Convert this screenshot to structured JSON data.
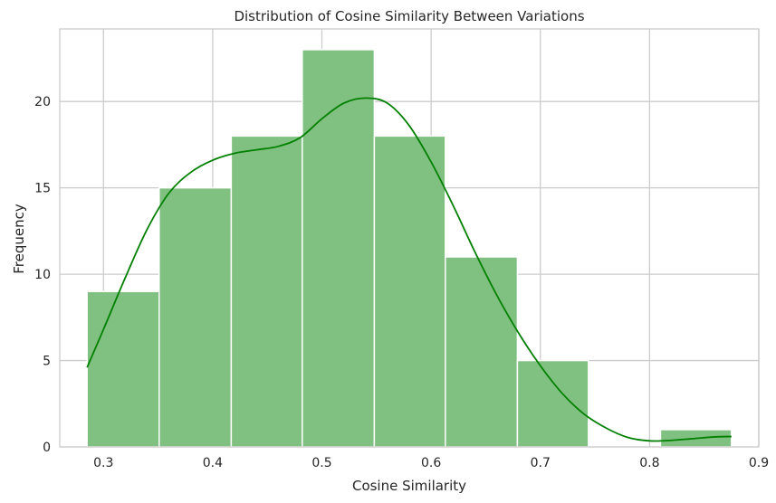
{
  "chart_data": {
    "type": "bar",
    "title": "Distribution of Cosine Similarity Between Variations",
    "xlabel": "Cosine Similarity",
    "ylabel": "Frequency",
    "xlim": [
      0.26,
      0.9
    ],
    "ylim": [
      0,
      24.2
    ],
    "xticks": [
      0.3,
      0.4,
      0.5,
      0.6,
      0.7,
      0.8,
      0.9
    ],
    "xtick_labels": [
      "0.3",
      "0.4",
      "0.5",
      "0.6",
      "0.7",
      "0.8",
      "0.9"
    ],
    "yticks": [
      0,
      5,
      10,
      15,
      20
    ],
    "ytick_labels": [
      "0",
      "5",
      "10",
      "15",
      "20"
    ],
    "grid": true,
    "bins": [
      {
        "x0": 0.285,
        "x1": 0.351,
        "count": 9
      },
      {
        "x0": 0.351,
        "x1": 0.417,
        "count": 15
      },
      {
        "x0": 0.417,
        "x1": 0.482,
        "count": 18
      },
      {
        "x0": 0.482,
        "x1": 0.548,
        "count": 23
      },
      {
        "x0": 0.548,
        "x1": 0.613,
        "count": 18
      },
      {
        "x0": 0.613,
        "x1": 0.679,
        "count": 11
      },
      {
        "x0": 0.679,
        "x1": 0.744,
        "count": 5
      },
      {
        "x0": 0.744,
        "x1": 0.81,
        "count": 0
      },
      {
        "x0": 0.81,
        "x1": 0.875,
        "count": 1
      }
    ],
    "kde": {
      "x": [
        0.285,
        0.3,
        0.32,
        0.34,
        0.36,
        0.38,
        0.4,
        0.42,
        0.44,
        0.46,
        0.48,
        0.5,
        0.52,
        0.54,
        0.56,
        0.58,
        0.6,
        0.62,
        0.64,
        0.66,
        0.68,
        0.7,
        0.72,
        0.74,
        0.76,
        0.78,
        0.8,
        0.82,
        0.84,
        0.86,
        0.875
      ],
      "y": [
        4.6,
        6.8,
        9.8,
        12.6,
        14.7,
        15.9,
        16.6,
        17.0,
        17.2,
        17.4,
        17.9,
        19.0,
        19.9,
        20.2,
        19.9,
        18.6,
        16.5,
        14.0,
        11.3,
        8.8,
        6.6,
        4.7,
        3.1,
        1.9,
        1.1,
        0.55,
        0.35,
        0.38,
        0.48,
        0.58,
        0.6
      ]
    },
    "colors": {
      "bar_fill": "#80c080",
      "bar_edge": "#ffffff",
      "bar_outline": "#6ea86e",
      "kde_line": "#008000",
      "grid": "#cccccc",
      "axes_edge": "#cccccc"
    }
  }
}
